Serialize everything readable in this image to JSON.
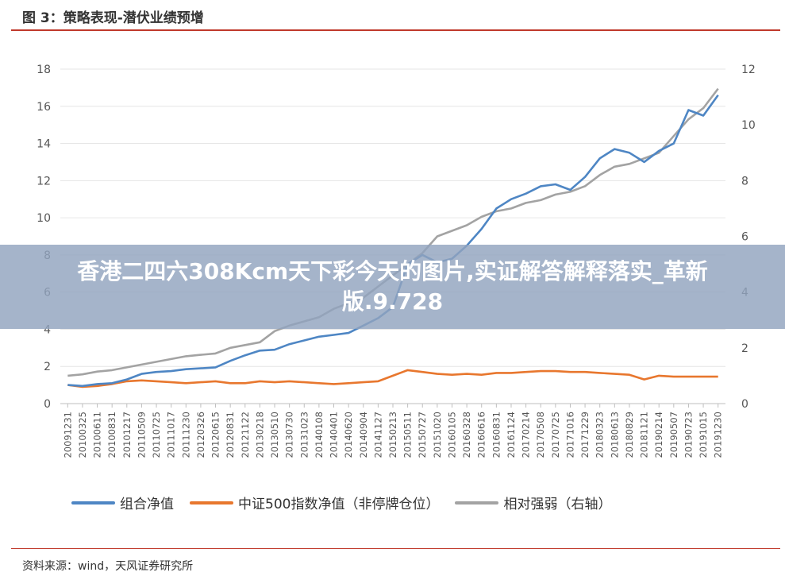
{
  "header": {
    "title": "图 3：策略表现-潜伏业绩预增"
  },
  "footer": {
    "source": "资料来源：wind，天风证券研究所"
  },
  "banner": {
    "text": "香港二四六308Kcm天下彩今天的图片,实证解答解释落实_革新版.9.728"
  },
  "colors": {
    "portfolio": "#4e86c4",
    "index": "#e8772e",
    "relative": "#a3a3a3",
    "accent": "#c0392b"
  },
  "chart_data": {
    "type": "line",
    "left_axis": {
      "min": 0,
      "max": 18,
      "ticks": [
        "0",
        "2",
        "4",
        "6",
        "8",
        "10",
        "12",
        "14",
        "16",
        "18"
      ]
    },
    "right_axis": {
      "min": 0,
      "max": 12,
      "ticks": [
        "0",
        "2",
        "4",
        "6",
        "8",
        "10",
        "12"
      ]
    },
    "x_ticks": [
      "20091231",
      "20100325",
      "20100611",
      "20100831",
      "20101217",
      "20110509",
      "20110725",
      "20111017",
      "20111230",
      "20120326",
      "20120615",
      "20120831",
      "20121122",
      "20130218",
      "20130510",
      "20130730",
      "20131023",
      "20140108",
      "20140401",
      "20140620",
      "20140904",
      "20141127",
      "20150213",
      "20150511",
      "20150727",
      "20151020",
      "20160105",
      "20160328",
      "20160616",
      "20160831",
      "20161124",
      "20170214",
      "20170508",
      "20170725",
      "20171016",
      "20171229",
      "20180323",
      "20180613",
      "20180829",
      "20181121",
      "20190214",
      "20190507",
      "20190723",
      "20191015",
      "20191230"
    ],
    "series": [
      {
        "name": "组合净值",
        "axis": "left",
        "color": "#4e86c4",
        "values": [
          1.0,
          0.95,
          1.05,
          1.1,
          1.3,
          1.6,
          1.7,
          1.75,
          1.85,
          1.9,
          1.95,
          2.3,
          2.6,
          2.85,
          2.9,
          3.2,
          3.4,
          3.6,
          3.7,
          3.8,
          4.2,
          4.6,
          5.2,
          7.5,
          8.0,
          7.6,
          7.8,
          8.5,
          9.4,
          10.5,
          11.0,
          11.3,
          11.7,
          11.8,
          11.5,
          12.2,
          13.2,
          13.7,
          13.5,
          13.0,
          13.6,
          14.0,
          15.8,
          15.5,
          16.6
        ]
      },
      {
        "name": "中证500指数净值（非停牌仓位）",
        "axis": "left",
        "color": "#e8772e",
        "values": [
          1.0,
          0.9,
          0.95,
          1.05,
          1.2,
          1.25,
          1.2,
          1.15,
          1.1,
          1.15,
          1.2,
          1.1,
          1.1,
          1.2,
          1.15,
          1.2,
          1.15,
          1.1,
          1.05,
          1.1,
          1.15,
          1.2,
          1.5,
          1.8,
          1.7,
          1.6,
          1.55,
          1.6,
          1.55,
          1.65,
          1.65,
          1.7,
          1.75,
          1.75,
          1.7,
          1.7,
          1.65,
          1.6,
          1.55,
          1.3,
          1.5,
          1.45,
          1.45,
          1.45,
          1.45
        ]
      },
      {
        "name": "相对强弱（右轴）",
        "axis": "right",
        "color": "#a3a3a3",
        "values": [
          1.0,
          1.05,
          1.15,
          1.2,
          1.3,
          1.4,
          1.5,
          1.6,
          1.7,
          1.75,
          1.8,
          2.0,
          2.1,
          2.2,
          2.6,
          2.8,
          2.95,
          3.1,
          3.4,
          3.6,
          3.8,
          4.2,
          4.6,
          5.0,
          5.4,
          6.0,
          6.2,
          6.4,
          6.7,
          6.9,
          7.0,
          7.2,
          7.3,
          7.5,
          7.6,
          7.8,
          8.2,
          8.5,
          8.6,
          8.8,
          9.0,
          9.6,
          10.2,
          10.6,
          11.3
        ]
      }
    ],
    "legend_position": "bottom"
  }
}
